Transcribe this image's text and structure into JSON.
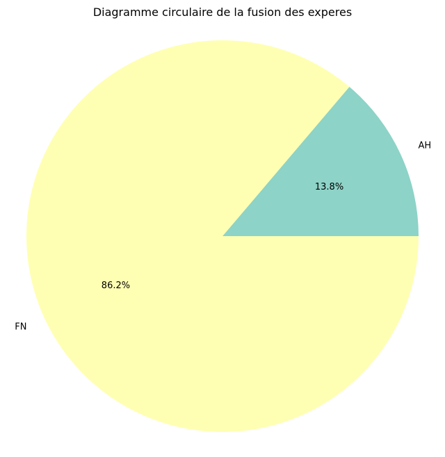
{
  "chart_data": {
    "type": "pie",
    "title": "Diagramme circulaire de la fusion des experes",
    "slices": [
      {
        "label": "AH",
        "value": 13.8,
        "pct_label": "13.8%",
        "color": "#8dd3c7"
      },
      {
        "label": "FN",
        "value": 86.2,
        "pct_label": "86.2%",
        "color": "#ffffb3"
      }
    ],
    "start_angle_deg": 0,
    "direction": "counterclockwise",
    "legend": "none"
  }
}
